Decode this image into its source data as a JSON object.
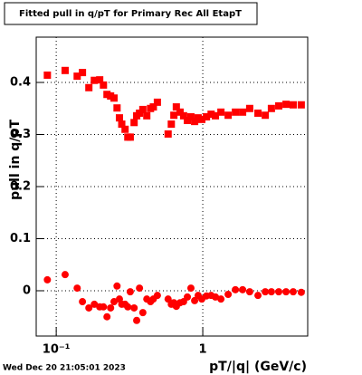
{
  "chart_data": {
    "type": "scatter",
    "title": "Fitted pull in q/pT for Primary Rec All EtapT",
    "y_label": "pull in q/pT",
    "x_label": "pT/|q| (GeV/c)",
    "footer": "Wed Dec 20 21:05:01 2023",
    "xscale": "log",
    "grid": true,
    "xlim": [
      0.073,
      5.2
    ],
    "ylim": [
      -0.087,
      0.487
    ],
    "xticks": [
      {
        "value": 0.1,
        "label": "10⁻¹"
      },
      1
    ],
    "yticks": [
      0,
      0.1,
      0.2,
      0.3,
      0.4
    ],
    "series": [
      {
        "color": "#ff0000",
        "marker": "square",
        "x": [
          0.087,
          0.115,
          0.139,
          0.151,
          0.167,
          0.182,
          0.198,
          0.21,
          0.222,
          0.235,
          0.248,
          0.26,
          0.27,
          0.28,
          0.295,
          0.308,
          0.32,
          0.34,
          0.354,
          0.37,
          0.39,
          0.415,
          0.44,
          0.46,
          0.49,
          0.58,
          0.61,
          0.635,
          0.66,
          0.7,
          0.74,
          0.785,
          0.83,
          0.88,
          0.93,
          0.985,
          1.06,
          1.14,
          1.22,
          1.33,
          1.49,
          1.67,
          1.87,
          2.09,
          2.38,
          2.67,
          2.94,
          3.3,
          3.7,
          4.14,
          4.7
        ],
        "values": [
          0.414,
          0.423,
          0.412,
          0.419,
          0.39,
          0.404,
          0.405,
          0.395,
          0.377,
          0.374,
          0.37,
          0.351,
          0.332,
          0.32,
          0.31,
          0.295,
          0.295,
          0.323,
          0.336,
          0.341,
          0.348,
          0.336,
          0.35,
          0.353,
          0.362,
          0.301,
          0.32,
          0.337,
          0.353,
          0.343,
          0.336,
          0.327,
          0.334,
          0.325,
          0.332,
          0.329,
          0.334,
          0.339,
          0.336,
          0.343,
          0.337,
          0.343,
          0.343,
          0.35,
          0.341,
          0.337,
          0.35,
          0.355,
          0.358,
          0.357,
          0.357
        ]
      },
      {
        "color": "#ff0000",
        "marker": "circle",
        "x": [
          0.087,
          0.115,
          0.139,
          0.151,
          0.167,
          0.182,
          0.198,
          0.21,
          0.222,
          0.235,
          0.248,
          0.26,
          0.27,
          0.28,
          0.295,
          0.308,
          0.32,
          0.34,
          0.354,
          0.37,
          0.39,
          0.415,
          0.44,
          0.46,
          0.49,
          0.58,
          0.61,
          0.635,
          0.66,
          0.7,
          0.74,
          0.785,
          0.83,
          0.88,
          0.93,
          0.985,
          1.06,
          1.14,
          1.22,
          1.33,
          1.49,
          1.67,
          1.87,
          2.09,
          2.38,
          2.67,
          2.94,
          3.3,
          3.7,
          4.14,
          4.7
        ],
        "values": [
          0.021,
          0.031,
          0.005,
          -0.021,
          -0.033,
          -0.026,
          -0.031,
          -0.031,
          -0.05,
          -0.033,
          -0.021,
          0.009,
          -0.016,
          -0.026,
          -0.026,
          -0.031,
          -0.002,
          -0.033,
          -0.057,
          0.005,
          -0.042,
          -0.016,
          -0.021,
          -0.016,
          -0.009,
          -0.016,
          -0.026,
          -0.023,
          -0.03,
          -0.023,
          -0.021,
          -0.012,
          0.005,
          -0.019,
          -0.009,
          -0.016,
          -0.01,
          -0.009,
          -0.012,
          -0.016,
          -0.007,
          0.002,
          0.002,
          -0.002,
          -0.009,
          -0.002,
          -0.002,
          -0.002,
          -0.002,
          -0.002,
          -0.003
        ]
      }
    ]
  }
}
